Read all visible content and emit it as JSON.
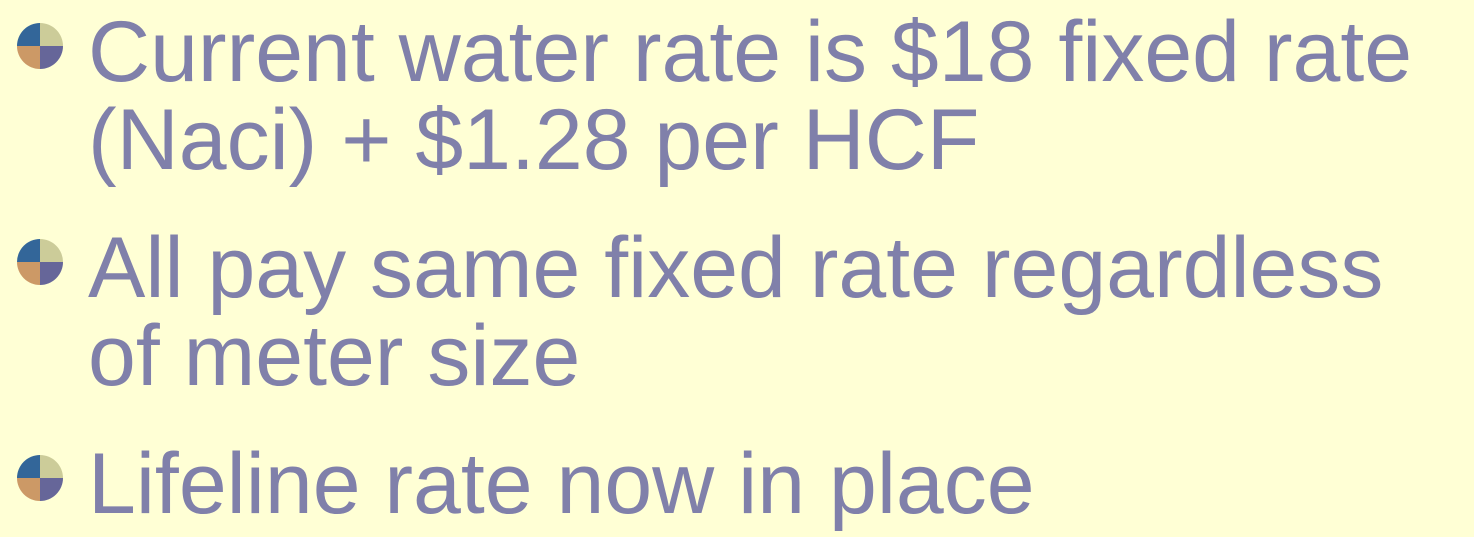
{
  "bullets": [
    "Current water rate is $18 fixed rate (Naci) + $1.28 per HCF",
    "All pay same fixed rate regardless of meter size",
    "Lifeline rate now in place"
  ]
}
